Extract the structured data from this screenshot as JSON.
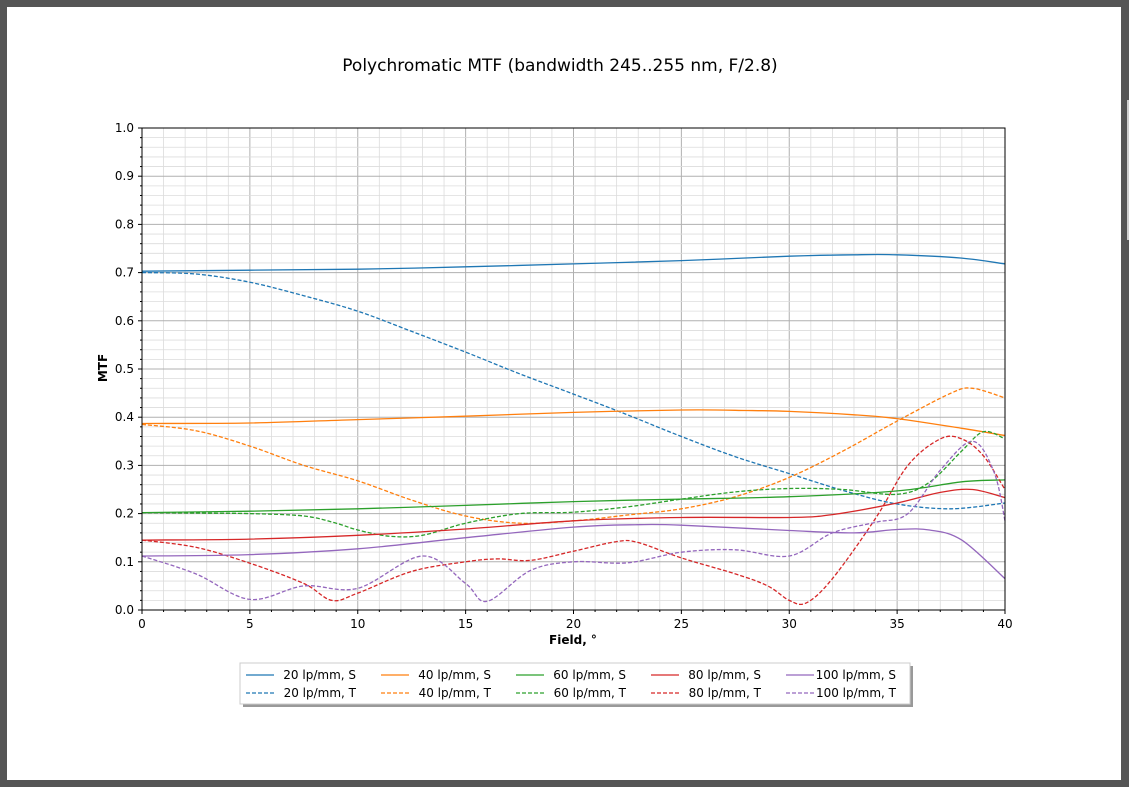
{
  "chart_data": {
    "type": "line",
    "title": "Polychromatic MTF (bandwidth 245..255 nm, F/2.8)",
    "xlabel": "Field, °",
    "ylabel": "MTF",
    "xlim": [
      0,
      40
    ],
    "ylim": [
      0,
      1.0
    ],
    "x_ticks": [
      0,
      5,
      10,
      15,
      20,
      25,
      30,
      35,
      40
    ],
    "y_ticks": [
      "0.0",
      "0.1",
      "0.2",
      "0.3",
      "0.4",
      "0.5",
      "0.6",
      "0.7",
      "0.8",
      "0.9",
      "1.0"
    ],
    "grid": true,
    "legend_placement": "bottom-center",
    "series": [
      {
        "name": "20 lp/mm, S",
        "color": "#1f77b4",
        "style": "solid",
        "x": [
          0,
          5,
          10,
          15,
          20,
          25,
          30,
          33,
          35,
          38,
          40
        ],
        "y": [
          0.703,
          0.705,
          0.707,
          0.712,
          0.718,
          0.725,
          0.734,
          0.737,
          0.737,
          0.73,
          0.718
        ]
      },
      {
        "name": "20 lp/mm, T",
        "color": "#1f77b4",
        "style": "dashed",
        "x": [
          0,
          2.5,
          5,
          7.5,
          10,
          12.5,
          15,
          17.5,
          20,
          22.5,
          25,
          27.5,
          30,
          32.5,
          35,
          37.5,
          40
        ],
        "y": [
          0.7,
          0.697,
          0.68,
          0.652,
          0.62,
          0.578,
          0.535,
          0.49,
          0.448,
          0.405,
          0.36,
          0.318,
          0.283,
          0.248,
          0.22,
          0.21,
          0.222
        ]
      },
      {
        "name": "40 lp/mm, S",
        "color": "#ff7f0e",
        "style": "solid",
        "x": [
          0,
          5,
          10,
          15,
          20,
          25,
          28,
          30,
          33,
          35,
          38,
          40
        ],
        "y": [
          0.387,
          0.388,
          0.395,
          0.402,
          0.41,
          0.415,
          0.414,
          0.412,
          0.405,
          0.397,
          0.377,
          0.362
        ]
      },
      {
        "name": "40 lp/mm, T",
        "color": "#ff7f0e",
        "style": "dashed",
        "x": [
          0,
          2.5,
          5,
          7.5,
          10,
          12.5,
          15,
          17.5,
          20,
          22.5,
          25,
          27.5,
          30,
          32.5,
          35,
          37.5,
          38.5,
          40
        ],
        "y": [
          0.385,
          0.372,
          0.34,
          0.3,
          0.268,
          0.228,
          0.195,
          0.18,
          0.185,
          0.197,
          0.21,
          0.235,
          0.275,
          0.33,
          0.392,
          0.45,
          0.46,
          0.44
        ]
      },
      {
        "name": "60 lp/mm, S",
        "color": "#2ca02c",
        "style": "solid",
        "x": [
          0,
          5,
          10,
          15,
          20,
          25,
          30,
          35,
          38,
          40
        ],
        "y": [
          0.202,
          0.205,
          0.21,
          0.217,
          0.225,
          0.23,
          0.235,
          0.247,
          0.266,
          0.27
        ]
      },
      {
        "name": "60 lp/mm, T",
        "color": "#2ca02c",
        "style": "dashed",
        "x": [
          0,
          2.5,
          5,
          7.5,
          9,
          10,
          11.5,
          13,
          15,
          17.5,
          20,
          22.5,
          25,
          27.5,
          30,
          32.5,
          35,
          36.5,
          38,
          39,
          40
        ],
        "y": [
          0.202,
          0.201,
          0.2,
          0.195,
          0.18,
          0.166,
          0.153,
          0.155,
          0.18,
          0.2,
          0.203,
          0.214,
          0.23,
          0.245,
          0.252,
          0.25,
          0.24,
          0.265,
          0.33,
          0.37,
          0.355
        ]
      },
      {
        "name": "80 lp/mm, S",
        "color": "#d62728",
        "style": "solid",
        "x": [
          0,
          5,
          10,
          15,
          20,
          25,
          30,
          32,
          35,
          37,
          38.5,
          40
        ],
        "y": [
          0.145,
          0.147,
          0.155,
          0.168,
          0.185,
          0.192,
          0.192,
          0.198,
          0.222,
          0.244,
          0.25,
          0.233
        ]
      },
      {
        "name": "80 lp/mm, T",
        "color": "#d62728",
        "style": "dashed",
        "x": [
          0,
          2.5,
          5,
          7.5,
          8.8,
          10,
          12.5,
          15,
          16.5,
          18,
          20,
          22,
          23,
          25,
          27.5,
          29,
          30,
          30.8,
          32,
          34,
          35.5,
          37,
          38,
          39,
          40
        ],
        "y": [
          0.145,
          0.13,
          0.097,
          0.055,
          0.02,
          0.035,
          0.08,
          0.1,
          0.106,
          0.103,
          0.122,
          0.142,
          0.14,
          0.108,
          0.075,
          0.05,
          0.02,
          0.015,
          0.065,
          0.19,
          0.3,
          0.355,
          0.355,
          0.32,
          0.25
        ]
      },
      {
        "name": "100 lp/mm, S",
        "color": "#9467bd",
        "style": "solid",
        "x": [
          0,
          5,
          10,
          15,
          20,
          23,
          25,
          30,
          33,
          35,
          36.5,
          38,
          40
        ],
        "y": [
          0.112,
          0.115,
          0.127,
          0.15,
          0.172,
          0.177,
          0.176,
          0.165,
          0.16,
          0.167,
          0.166,
          0.145,
          0.065
        ]
      },
      {
        "name": "100 lp/mm, T",
        "color": "#9467bd",
        "style": "dashed",
        "x": [
          0,
          2.5,
          5,
          7.5,
          10,
          13,
          15,
          16,
          18,
          20,
          22.5,
          25,
          27.5,
          30,
          32,
          34,
          35.5,
          37,
          38.5,
          39.5,
          40
        ],
        "y": [
          0.112,
          0.075,
          0.022,
          0.05,
          0.045,
          0.112,
          0.055,
          0.018,
          0.082,
          0.1,
          0.098,
          0.12,
          0.125,
          0.112,
          0.16,
          0.182,
          0.2,
          0.29,
          0.35,
          0.285,
          0.185
        ]
      }
    ]
  }
}
